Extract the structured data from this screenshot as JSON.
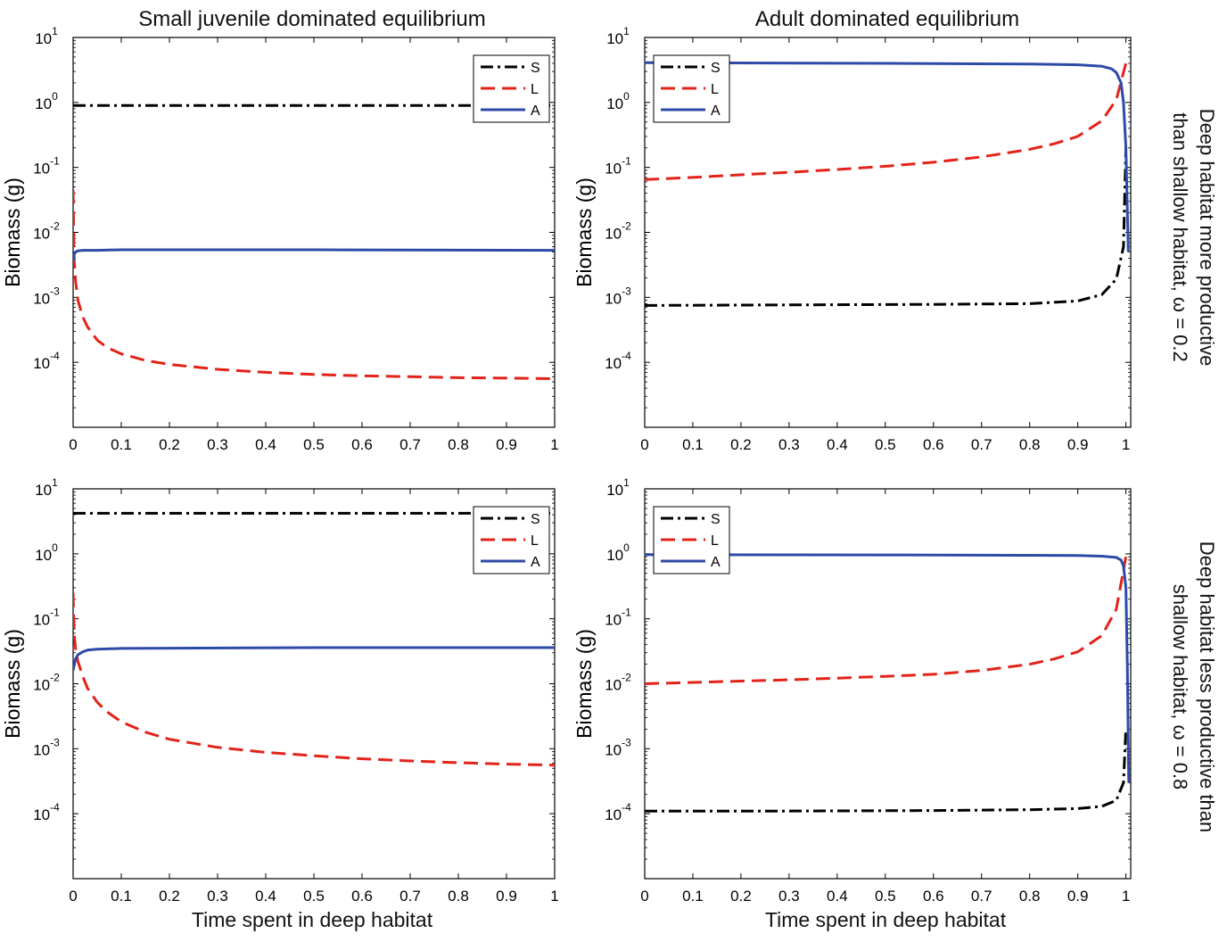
{
  "column_titles": [
    "Small juvenile dominated equilibrium",
    "Adult dominated equilibrium"
  ],
  "row_labels": [
    [
      "Deep habitat more productive",
      "than shallow habitat, ω = 0.2"
    ],
    [
      "Deep habitat less productive than",
      "shallow habitat, ω = 0.8"
    ]
  ],
  "x_axis_label": "Time spent in deep habitat",
  "colors": {
    "S": "#000000",
    "L": "#e2231a",
    "A": "#2e4aa8"
  },
  "chart_data": [
    {
      "type": "line",
      "panel": "top-left",
      "xlabel": "Time spent in deep habitat",
      "ylabel": "Biomass (g)",
      "xlim": [
        0,
        1
      ],
      "ylim": [
        1e-05,
        10
      ],
      "yscale": "log",
      "xticks": [
        "0",
        "0.1",
        "0.2",
        "0.3",
        "0.4",
        "0.5",
        "0.6",
        "0.7",
        "0.8",
        "0.9",
        "1"
      ],
      "yticks": [
        "10^1",
        "10^0",
        "10^-1",
        "10^-2",
        "10^-3",
        "10^-4"
      ],
      "legend": [
        "S",
        "L",
        "A"
      ],
      "legend_position": "top-right",
      "series": [
        {
          "name": "S",
          "style": "dashdot",
          "x": [
            0,
            1
          ],
          "y": [
            0.9,
            0.9
          ]
        },
        {
          "name": "L",
          "style": "dashed",
          "x": [
            0,
            0.002,
            0.005,
            0.01,
            0.02,
            0.03,
            0.05,
            0.07,
            0.1,
            0.15,
            0.2,
            0.3,
            0.4,
            0.5,
            0.6,
            0.7,
            0.8,
            0.9,
            1.0
          ],
          "y": [
            0.045,
            0.004,
            0.0018,
            0.0009,
            0.0005,
            0.00035,
            0.00022,
            0.00017,
            0.000135,
            0.000107,
            9.3e-05,
            7.8e-05,
            7e-05,
            6.5e-05,
            6.2e-05,
            6e-05,
            5.8e-05,
            5.7e-05,
            5.6e-05
          ]
        },
        {
          "name": "A",
          "style": "solid",
          "x": [
            0,
            0.002,
            0.005,
            0.01,
            0.02,
            0.05,
            0.1,
            0.5,
            1.0
          ],
          "y": [
            0.0035,
            0.0045,
            0.005,
            0.0052,
            0.0053,
            0.0053,
            0.0054,
            0.0054,
            0.0053
          ]
        }
      ]
    },
    {
      "type": "line",
      "panel": "top-right",
      "xlabel": "Time spent in deep habitat",
      "ylabel": "Biomass (g)",
      "xlim": [
        0,
        1.01
      ],
      "ylim": [
        1e-05,
        10
      ],
      "yscale": "log",
      "xticks": [
        "0",
        "0.1",
        "0.2",
        "0.3",
        "0.4",
        "0.5",
        "0.6",
        "0.7",
        "0.8",
        "0.9",
        "1"
      ],
      "yticks": [
        "10^1",
        "10^0",
        "10^-1",
        "10^-2",
        "10^-3",
        "10^-4"
      ],
      "legend": [
        "S",
        "L",
        "A"
      ],
      "legend_position": "top-left",
      "series": [
        {
          "name": "S",
          "style": "dashdot",
          "x": [
            0,
            0.2,
            0.4,
            0.6,
            0.8,
            0.9,
            0.95,
            0.98,
            0.995,
            1.0
          ],
          "y": [
            0.00075,
            0.00076,
            0.00077,
            0.00078,
            0.0008,
            0.00088,
            0.0011,
            0.0019,
            0.006,
            0.2
          ]
        },
        {
          "name": "L",
          "style": "dashed",
          "x": [
            0,
            0.1,
            0.2,
            0.3,
            0.4,
            0.5,
            0.6,
            0.7,
            0.8,
            0.85,
            0.9,
            0.95,
            0.98,
            1.0
          ],
          "y": [
            0.065,
            0.07,
            0.077,
            0.084,
            0.093,
            0.104,
            0.12,
            0.145,
            0.19,
            0.23,
            0.3,
            0.52,
            1.1,
            4.0
          ]
        },
        {
          "name": "A",
          "style": "solid",
          "x": [
            0,
            0.5,
            0.8,
            0.9,
            0.95,
            0.97,
            0.98,
            0.99,
            0.995,
            1.0,
            1.005
          ],
          "y": [
            4.1,
            4.0,
            3.9,
            3.8,
            3.6,
            3.3,
            2.9,
            2.0,
            1.0,
            0.2,
            0.005
          ]
        }
      ]
    },
    {
      "type": "line",
      "panel": "bottom-left",
      "xlabel": "Time spent in deep habitat",
      "ylabel": "Biomass (g)",
      "xlim": [
        0,
        1
      ],
      "ylim": [
        1e-05,
        10
      ],
      "yscale": "log",
      "xticks": [
        "0",
        "0.1",
        "0.2",
        "0.3",
        "0.4",
        "0.5",
        "0.6",
        "0.7",
        "0.8",
        "0.9",
        "1"
      ],
      "yticks": [
        "10^1",
        "10^0",
        "10^-1",
        "10^-2",
        "10^-3",
        "10^-4"
      ],
      "legend": [
        "S",
        "L",
        "A"
      ],
      "legend_position": "top-right",
      "series": [
        {
          "name": "S",
          "style": "dashdot",
          "x": [
            0,
            1
          ],
          "y": [
            4.2,
            4.2
          ]
        },
        {
          "name": "L",
          "style": "dashed",
          "x": [
            0,
            0.002,
            0.005,
            0.01,
            0.02,
            0.03,
            0.05,
            0.07,
            0.1,
            0.15,
            0.2,
            0.3,
            0.4,
            0.5,
            0.6,
            0.7,
            0.8,
            0.9,
            1.0
          ],
          "y": [
            0.25,
            0.06,
            0.035,
            0.022,
            0.013,
            0.0085,
            0.0052,
            0.0037,
            0.0026,
            0.0018,
            0.0014,
            0.00105,
            0.00088,
            0.00078,
            0.0007,
            0.00065,
            0.00061,
            0.00058,
            0.00056
          ]
        },
        {
          "name": "A",
          "style": "solid",
          "x": [
            0,
            0.005,
            0.01,
            0.02,
            0.03,
            0.05,
            0.1,
            0.5,
            1.0
          ],
          "y": [
            0.016,
            0.024,
            0.028,
            0.031,
            0.033,
            0.034,
            0.035,
            0.036,
            0.036
          ]
        }
      ]
    },
    {
      "type": "line",
      "panel": "bottom-right",
      "xlabel": "Time spent in deep habitat",
      "ylabel": "Biomass (g)",
      "xlim": [
        0,
        1.01
      ],
      "ylim": [
        1e-05,
        10
      ],
      "yscale": "log",
      "xticks": [
        "0",
        "0.1",
        "0.2",
        "0.3",
        "0.4",
        "0.5",
        "0.6",
        "0.7",
        "0.8",
        "0.9",
        "1"
      ],
      "yticks": [
        "10^1",
        "10^0",
        "10^-1",
        "10^-2",
        "10^-3",
        "10^-4"
      ],
      "legend": [
        "S",
        "L",
        "A"
      ],
      "legend_position": "top-left",
      "series": [
        {
          "name": "S",
          "style": "dashdot",
          "x": [
            0,
            0.3,
            0.6,
            0.8,
            0.9,
            0.95,
            0.98,
            0.995,
            1.0
          ],
          "y": [
            0.00011,
            0.00011,
            0.000112,
            0.000115,
            0.00012,
            0.00013,
            0.00016,
            0.0003,
            0.002
          ]
        },
        {
          "name": "L",
          "style": "dashed",
          "x": [
            0,
            0.1,
            0.2,
            0.3,
            0.4,
            0.5,
            0.6,
            0.7,
            0.8,
            0.85,
            0.9,
            0.95,
            0.98,
            1.0
          ],
          "y": [
            0.01,
            0.0105,
            0.011,
            0.0115,
            0.0122,
            0.013,
            0.014,
            0.016,
            0.02,
            0.024,
            0.031,
            0.055,
            0.14,
            0.9
          ]
        },
        {
          "name": "A",
          "style": "solid",
          "x": [
            0,
            0.5,
            0.8,
            0.9,
            0.95,
            0.98,
            0.99,
            0.995,
            1.0,
            1.003,
            1.006
          ],
          "y": [
            0.97,
            0.96,
            0.95,
            0.94,
            0.92,
            0.88,
            0.8,
            0.65,
            0.3,
            0.02,
            0.0003
          ]
        }
      ]
    }
  ]
}
